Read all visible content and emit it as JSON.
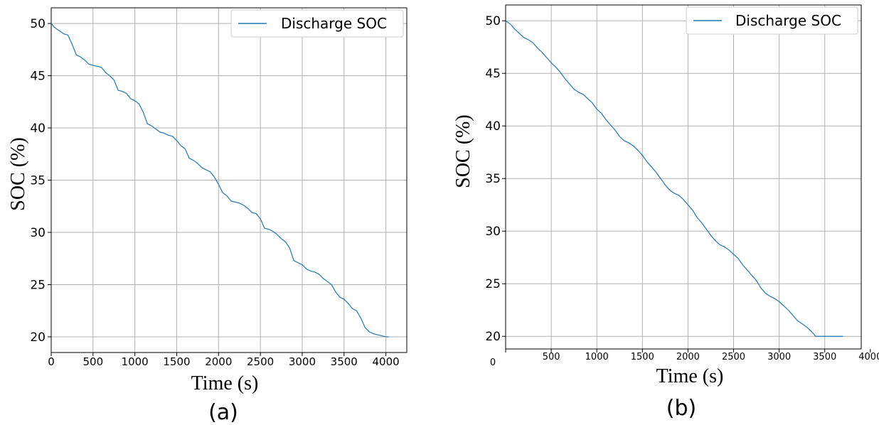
{
  "chart_data": [
    {
      "type": "line",
      "caption": "(a)",
      "xlabel": "Time (s)",
      "ylabel": "SOC (%)",
      "xlim": [
        0,
        4250
      ],
      "ylim": [
        18.5,
        51.5
      ],
      "xticks": [
        0,
        500,
        1000,
        1500,
        2000,
        2500,
        3000,
        3500,
        4000
      ],
      "yticks": [
        20,
        25,
        30,
        35,
        40,
        45,
        50
      ],
      "grid": true,
      "legend_position": "top-right",
      "color": "#1f77b4",
      "series": [
        {
          "name": "Discharge SOC",
          "x": [
            0,
            30,
            60,
            100,
            150,
            200,
            250,
            300,
            350,
            400,
            450,
            500,
            550,
            600,
            650,
            700,
            750,
            800,
            850,
            900,
            950,
            1000,
            1050,
            1100,
            1150,
            1200,
            1250,
            1300,
            1350,
            1400,
            1450,
            1500,
            1550,
            1600,
            1650,
            1700,
            1750,
            1800,
            1850,
            1900,
            1950,
            2000,
            2050,
            2100,
            2150,
            2200,
            2250,
            2300,
            2350,
            2400,
            2450,
            2500,
            2550,
            2600,
            2650,
            2700,
            2750,
            2800,
            2850,
            2900,
            2950,
            3000,
            3050,
            3100,
            3150,
            3200,
            3250,
            3300,
            3350,
            3400,
            3450,
            3500,
            3550,
            3600,
            3650,
            3700,
            3750,
            3800,
            3850,
            3900,
            3950,
            4000,
            4040
          ],
          "y": [
            50,
            49.7,
            49.5,
            49.3,
            49.0,
            48.9,
            48.0,
            47.0,
            46.8,
            46.5,
            46.1,
            46.0,
            45.9,
            45.8,
            45.3,
            45.0,
            44.6,
            43.6,
            43.5,
            43.3,
            42.8,
            42.6,
            42.3,
            41.5,
            40.4,
            40.2,
            39.9,
            39.6,
            39.5,
            39.3,
            39.2,
            38.8,
            38.3,
            38.0,
            37.1,
            36.9,
            36.6,
            36.2,
            36.0,
            35.8,
            35.3,
            34.6,
            33.8,
            33.5,
            33.0,
            32.9,
            32.8,
            32.6,
            32.3,
            31.9,
            31.8,
            31.3,
            30.4,
            30.3,
            30.1,
            29.8,
            29.4,
            29.1,
            28.5,
            27.3,
            27.1,
            26.9,
            26.5,
            26.3,
            26.2,
            26.0,
            25.6,
            25.3,
            25.0,
            24.3,
            23.8,
            23.6,
            23.2,
            22.7,
            22.5,
            21.8,
            20.9,
            20.5,
            20.3,
            20.2,
            20.1,
            20.0,
            20.0
          ]
        }
      ]
    },
    {
      "type": "line",
      "caption": "(b)",
      "xlabel": "Time (s)",
      "ylabel": "SOC (%)",
      "xlim": [
        0,
        3900
      ],
      "ylim": [
        18.8,
        51.5
      ],
      "xticks": [
        0,
        500,
        1000,
        1500,
        2000,
        2500,
        3000,
        3500,
        4000
      ],
      "yticks": [
        20,
        25,
        30,
        35,
        40,
        45,
        50
      ],
      "grid": true,
      "legend_position": "top-right",
      "color": "#1f77b4",
      "series": [
        {
          "name": "Discharge SOC",
          "x": [
            0,
            50,
            100,
            150,
            200,
            250,
            300,
            350,
            400,
            450,
            500,
            550,
            600,
            650,
            700,
            750,
            800,
            850,
            900,
            950,
            1000,
            1050,
            1100,
            1150,
            1200,
            1250,
            1300,
            1350,
            1400,
            1450,
            1500,
            1550,
            1600,
            1650,
            1700,
            1750,
            1800,
            1850,
            1900,
            1950,
            2000,
            2050,
            2100,
            2150,
            2200,
            2250,
            2300,
            2350,
            2400,
            2450,
            2500,
            2550,
            2600,
            2650,
            2700,
            2750,
            2800,
            2850,
            2900,
            2950,
            3000,
            3050,
            3100,
            3150,
            3200,
            3250,
            3300,
            3350,
            3400,
            3450,
            3500,
            3550,
            3600,
            3650,
            3700
          ],
          "y": [
            50,
            49.7,
            49.2,
            48.8,
            48.4,
            48.2,
            47.9,
            47.4,
            47.0,
            46.5,
            46.0,
            45.6,
            45.1,
            44.5,
            44.0,
            43.5,
            43.2,
            43.0,
            42.6,
            42.2,
            41.6,
            41.2,
            40.6,
            40.1,
            39.6,
            39.0,
            38.6,
            38.4,
            38.1,
            37.7,
            37.2,
            36.6,
            36.1,
            35.6,
            35.0,
            34.4,
            33.9,
            33.6,
            33.4,
            33.0,
            32.5,
            32.0,
            31.3,
            30.8,
            30.2,
            29.6,
            29.1,
            28.7,
            28.5,
            28.2,
            27.8,
            27.4,
            26.8,
            26.3,
            25.8,
            25.3,
            24.6,
            24.1,
            23.8,
            23.6,
            23.3,
            22.9,
            22.5,
            22.0,
            21.5,
            21.2,
            20.9,
            20.5,
            20.0,
            20.0,
            20.0,
            20.0,
            20.0,
            20.0,
            20.0
          ]
        }
      ]
    }
  ]
}
